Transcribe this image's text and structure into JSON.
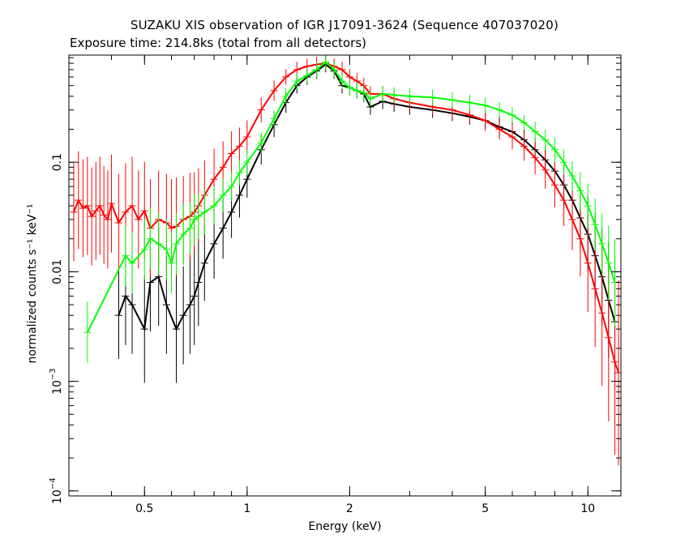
{
  "chart_data": {
    "type": "scatter",
    "title": "SUZAKU XIS observation of IGR J17091-3624 (Sequence 407037020)",
    "subtitle": "Exposure time: 214.8ks (total from all detectors)",
    "xlabel": "Energy (keV)",
    "ylabel": "normalized counts s⁻¹ keV⁻¹",
    "xscale": "log",
    "yscale": "log",
    "xlim": [
      0.3,
      12.5
    ],
    "ylim": [
      9e-05,
      0.95
    ],
    "grid": false,
    "x_ticks": [
      {
        "value": 0.5,
        "label": "0.5"
      },
      {
        "value": 1,
        "label": "1"
      },
      {
        "value": 2,
        "label": "2"
      },
      {
        "value": 5,
        "label": "5"
      },
      {
        "value": 10,
        "label": "10"
      }
    ],
    "y_ticks": [
      {
        "value": 0.0001,
        "label": "10",
        "exp": "−4"
      },
      {
        "value": 0.001,
        "label": "10",
        "exp": "−3"
      },
      {
        "value": 0.01,
        "label": "0.01",
        "exp": ""
      },
      {
        "value": 0.1,
        "label": "0.1",
        "exp": ""
      }
    ],
    "series": [
      {
        "color": "#000000",
        "x": [
          0.42,
          0.44,
          0.46,
          0.5,
          0.52,
          0.55,
          0.58,
          0.62,
          0.65,
          0.68,
          0.7,
          0.72,
          0.75,
          0.8,
          0.85,
          0.9,
          0.95,
          1.0,
          1.1,
          1.2,
          1.3,
          1.4,
          1.5,
          1.6,
          1.7,
          1.8,
          1.9,
          2.0,
          2.1,
          2.2,
          2.3,
          2.5,
          2.7,
          3.0,
          3.5,
          4.0,
          4.5,
          5.0,
          5.5,
          6.0,
          6.5,
          7.0,
          7.5,
          8.0,
          8.5,
          9.0,
          9.5,
          10.0,
          10.5,
          11.0,
          11.5,
          12.0
        ],
        "y": [
          0.004,
          0.006,
          0.005,
          0.003,
          0.008,
          0.009,
          0.005,
          0.003,
          0.004,
          0.005,
          0.006,
          0.008,
          0.012,
          0.018,
          0.025,
          0.035,
          0.05,
          0.07,
          0.13,
          0.22,
          0.35,
          0.5,
          0.6,
          0.68,
          0.78,
          0.68,
          0.5,
          0.48,
          0.45,
          0.42,
          0.32,
          0.36,
          0.34,
          0.32,
          0.3,
          0.28,
          0.26,
          0.24,
          0.21,
          0.19,
          0.16,
          0.13,
          0.105,
          0.083,
          0.062,
          0.045,
          0.031,
          0.022,
          0.014,
          0.009,
          0.0055,
          0.0035
        ],
        "err": [
          0.25,
          0.3,
          0.3,
          0.35,
          0.3,
          0.3,
          0.3,
          0.35,
          0.3,
          0.3,
          0.3,
          0.25,
          0.2,
          0.18,
          0.15,
          0.12,
          0.1,
          0.08,
          0.06,
          0.05,
          0.04,
          0.03,
          0.03,
          0.03,
          0.03,
          0.03,
          0.03,
          0.03,
          0.03,
          0.03,
          0.03,
          0.03,
          0.03,
          0.03,
          0.03,
          0.03,
          0.03,
          0.03,
          0.04,
          0.04,
          0.04,
          0.05,
          0.06,
          0.08,
          0.1,
          0.12,
          0.15,
          0.2,
          0.25,
          0.3,
          0.4,
          0.5
        ]
      },
      {
        "color": "#ff0000",
        "x": [
          0.31,
          0.32,
          0.33,
          0.34,
          0.35,
          0.36,
          0.37,
          0.38,
          0.39,
          0.4,
          0.42,
          0.44,
          0.46,
          0.48,
          0.5,
          0.52,
          0.55,
          0.58,
          0.6,
          0.62,
          0.65,
          0.68,
          0.7,
          0.72,
          0.75,
          0.8,
          0.85,
          0.9,
          0.95,
          1.0,
          1.1,
          1.2,
          1.3,
          1.4,
          1.5,
          1.6,
          1.7,
          1.8,
          1.9,
          2.0,
          2.1,
          2.2,
          2.3,
          2.5,
          2.7,
          3.0,
          3.5,
          4.0,
          4.5,
          5.0,
          5.5,
          6.0,
          6.5,
          7.0,
          7.5,
          8.0,
          8.5,
          9.0,
          9.5,
          10.0,
          10.5,
          11.0,
          11.5,
          12.0,
          12.3
        ],
        "y": [
          0.035,
          0.045,
          0.038,
          0.04,
          0.032,
          0.036,
          0.04,
          0.033,
          0.03,
          0.042,
          0.028,
          0.035,
          0.04,
          0.03,
          0.036,
          0.025,
          0.03,
          0.028,
          0.025,
          0.026,
          0.03,
          0.032,
          0.035,
          0.04,
          0.05,
          0.07,
          0.09,
          0.12,
          0.14,
          0.17,
          0.3,
          0.45,
          0.6,
          0.7,
          0.75,
          0.78,
          0.8,
          0.75,
          0.7,
          0.6,
          0.55,
          0.5,
          0.42,
          0.42,
          0.38,
          0.35,
          0.32,
          0.3,
          0.27,
          0.24,
          0.2,
          0.17,
          0.14,
          0.11,
          0.085,
          0.062,
          0.045,
          0.03,
          0.02,
          0.012,
          0.007,
          0.0042,
          0.0025,
          0.0015,
          0.0012
        ],
        "err": [
          0.3,
          0.3,
          0.3,
          0.3,
          0.3,
          0.3,
          0.3,
          0.3,
          0.3,
          0.3,
          0.3,
          0.3,
          0.3,
          0.3,
          0.3,
          0.3,
          0.3,
          0.3,
          0.3,
          0.3,
          0.25,
          0.25,
          0.22,
          0.2,
          0.18,
          0.15,
          0.12,
          0.1,
          0.08,
          0.07,
          0.05,
          0.04,
          0.03,
          0.03,
          0.03,
          0.03,
          0.03,
          0.03,
          0.03,
          0.03,
          0.03,
          0.03,
          0.03,
          0.03,
          0.03,
          0.03,
          0.03,
          0.03,
          0.03,
          0.04,
          0.04,
          0.05,
          0.06,
          0.07,
          0.08,
          0.1,
          0.12,
          0.15,
          0.2,
          0.3,
          0.4,
          0.6,
          0.8,
          1.0,
          1.0
        ]
      },
      {
        "color": "#00ff00",
        "x": [
          0.34,
          0.44,
          0.46,
          0.5,
          0.52,
          0.55,
          0.58,
          0.6,
          0.62,
          0.65,
          0.68,
          0.7,
          0.72,
          0.75,
          0.8,
          0.85,
          0.9,
          0.95,
          1.0,
          1.1,
          1.2,
          1.3,
          1.4,
          1.5,
          1.6,
          1.7,
          1.8,
          1.9,
          2.0,
          2.1,
          2.2,
          2.3,
          2.5,
          2.7,
          3.0,
          3.5,
          4.0,
          4.5,
          5.0,
          5.5,
          6.0,
          6.5,
          7.0,
          7.5,
          8.0,
          8.5,
          9.0,
          9.5,
          10.0,
          10.5,
          11.0,
          11.5,
          12.0
        ],
        "y": [
          0.0028,
          0.014,
          0.012,
          0.016,
          0.02,
          0.018,
          0.016,
          0.012,
          0.018,
          0.022,
          0.025,
          0.03,
          0.032,
          0.035,
          0.04,
          0.05,
          0.06,
          0.08,
          0.1,
          0.15,
          0.25,
          0.4,
          0.55,
          0.62,
          0.7,
          0.82,
          0.7,
          0.55,
          0.48,
          0.45,
          0.43,
          0.38,
          0.42,
          0.41,
          0.4,
          0.39,
          0.37,
          0.35,
          0.33,
          0.3,
          0.27,
          0.23,
          0.19,
          0.16,
          0.13,
          0.1,
          0.075,
          0.055,
          0.04,
          0.027,
          0.018,
          0.012,
          0.008
        ],
        "err": [
          0.15,
          0.15,
          0.15,
          0.15,
          0.15,
          0.15,
          0.15,
          0.15,
          0.15,
          0.15,
          0.12,
          0.12,
          0.1,
          0.1,
          0.08,
          0.07,
          0.06,
          0.05,
          0.05,
          0.04,
          0.03,
          0.03,
          0.03,
          0.03,
          0.03,
          0.03,
          0.03,
          0.03,
          0.03,
          0.03,
          0.03,
          0.03,
          0.03,
          0.03,
          0.03,
          0.03,
          0.03,
          0.03,
          0.03,
          0.03,
          0.03,
          0.03,
          0.04,
          0.04,
          0.05,
          0.05,
          0.06,
          0.08,
          0.1,
          0.12,
          0.15,
          0.2,
          0.25
        ]
      }
    ]
  }
}
